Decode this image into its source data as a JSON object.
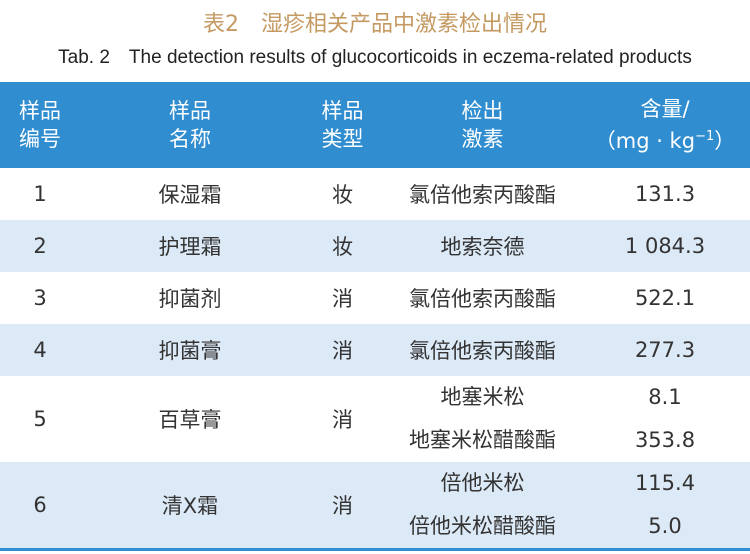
{
  "title": "表2　湿疹相关产品中激素检出情况",
  "subtitle": "Tab. 2　The detection results of glucocorticoids in eczema-related products",
  "table": {
    "header": [
      [
        "样品",
        "编号"
      ],
      [
        "样品",
        "名称"
      ],
      [
        "样品",
        "类型"
      ],
      [
        "检出",
        "激素"
      ],
      {
        "line1": "含量/",
        "line2": "（mg · kg",
        "sup": "−1",
        "close": "）"
      }
    ],
    "rows": [
      {
        "no": "1",
        "name": "保湿霜",
        "type": "妆",
        "hormones": [
          "氯倍他索丙酸酯"
        ],
        "contents": [
          "131.3"
        ]
      },
      {
        "no": "2",
        "name": "护理霜",
        "type": "妆",
        "hormones": [
          "地索奈德"
        ],
        "contents": [
          "1 084.3"
        ]
      },
      {
        "no": "3",
        "name": "抑菌剂",
        "type": "消",
        "hormones": [
          "氯倍他索丙酸酯"
        ],
        "contents": [
          "522.1"
        ]
      },
      {
        "no": "4",
        "name": "抑菌膏",
        "type": "消",
        "hormones": [
          "氯倍他索丙酸酯"
        ],
        "contents": [
          "277.3"
        ]
      },
      {
        "no": "5",
        "name": "百草膏",
        "type": "消",
        "hormones": [
          "地塞米松",
          "地塞米松醋酸酯"
        ],
        "contents": [
          "8.1",
          "353.8"
        ]
      },
      {
        "no": "6",
        "name": "清X霜",
        "type": "消",
        "hormones": [
          "倍他米松",
          "倍他米松醋酸酯"
        ],
        "contents": [
          "115.4",
          "5.0"
        ]
      }
    ]
  }
}
